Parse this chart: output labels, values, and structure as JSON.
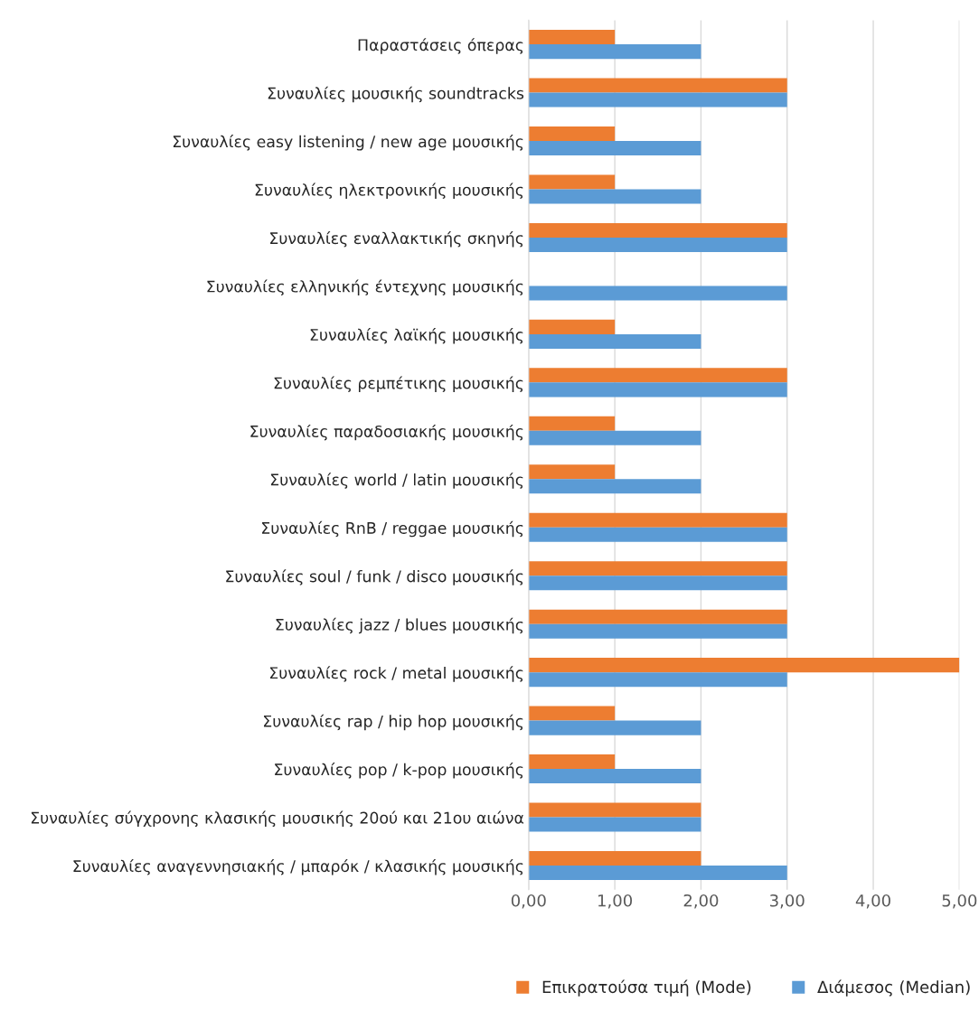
{
  "chart_data": {
    "type": "bar",
    "orientation": "horizontal",
    "categories": [
      "Παραστάσεις όπερας",
      "Συναυλίες μουσικής soundtracks",
      "Συναυλίες easy listening / new age μουσικής",
      "Συναυλίες ηλεκτρονικής μουσικής",
      "Συναυλίες εναλλακτικής σκηνής",
      "Συναυλίες ελληνικής έντεχνης μουσικής",
      "Συναυλίες λαϊκής μουσικής",
      "Συναυλίες ρεμπέτικης μουσικής",
      "Συναυλίες παραδοσιακής μουσικής",
      "Συναυλίες world / latin μουσικής",
      "Συναυλίες RnB / reggae μουσικής",
      "Συναυλίες soul / funk / disco μουσικής",
      "Συναυλίες jazz / blues μουσικής",
      "Συναυλίες rock / metal μουσικής",
      "Συναυλίες rap / hip hop μουσικής",
      "Συναυλίες pop / k-pop μουσικής",
      "Συναυλίες σύγχρονης κλασικής μουσικής 20ού και 21ου αιώνα",
      "Συναυλίες αναγεννησιακής / μπαρόκ / κλασικής μουσικής"
    ],
    "series": [
      {
        "name": "Επικρατούσα τιμή (Mode)",
        "color": "#ed7d31",
        "values": [
          1,
          3,
          1,
          1,
          3,
          null,
          1,
          3,
          1,
          1,
          3,
          3,
          3,
          5,
          1,
          1,
          2,
          2
        ]
      },
      {
        "name": "Διάμεσος (Median)",
        "color": "#5b9bd5",
        "values": [
          2,
          3,
          2,
          2,
          3,
          3,
          2,
          3,
          2,
          2,
          3,
          3,
          3,
          3,
          2,
          2,
          2,
          3
        ]
      }
    ],
    "xlim": [
      0,
      5
    ],
    "xticks": [
      {
        "value": 0,
        "label": "0,00"
      },
      {
        "value": 1,
        "label": "1,00"
      },
      {
        "value": 2,
        "label": "2,00"
      },
      {
        "value": 3,
        "label": "3,00"
      },
      {
        "value": 4,
        "label": "4,00"
      },
      {
        "value": 5,
        "label": "5,00"
      }
    ],
    "grid": "x",
    "legend": "bottom"
  }
}
